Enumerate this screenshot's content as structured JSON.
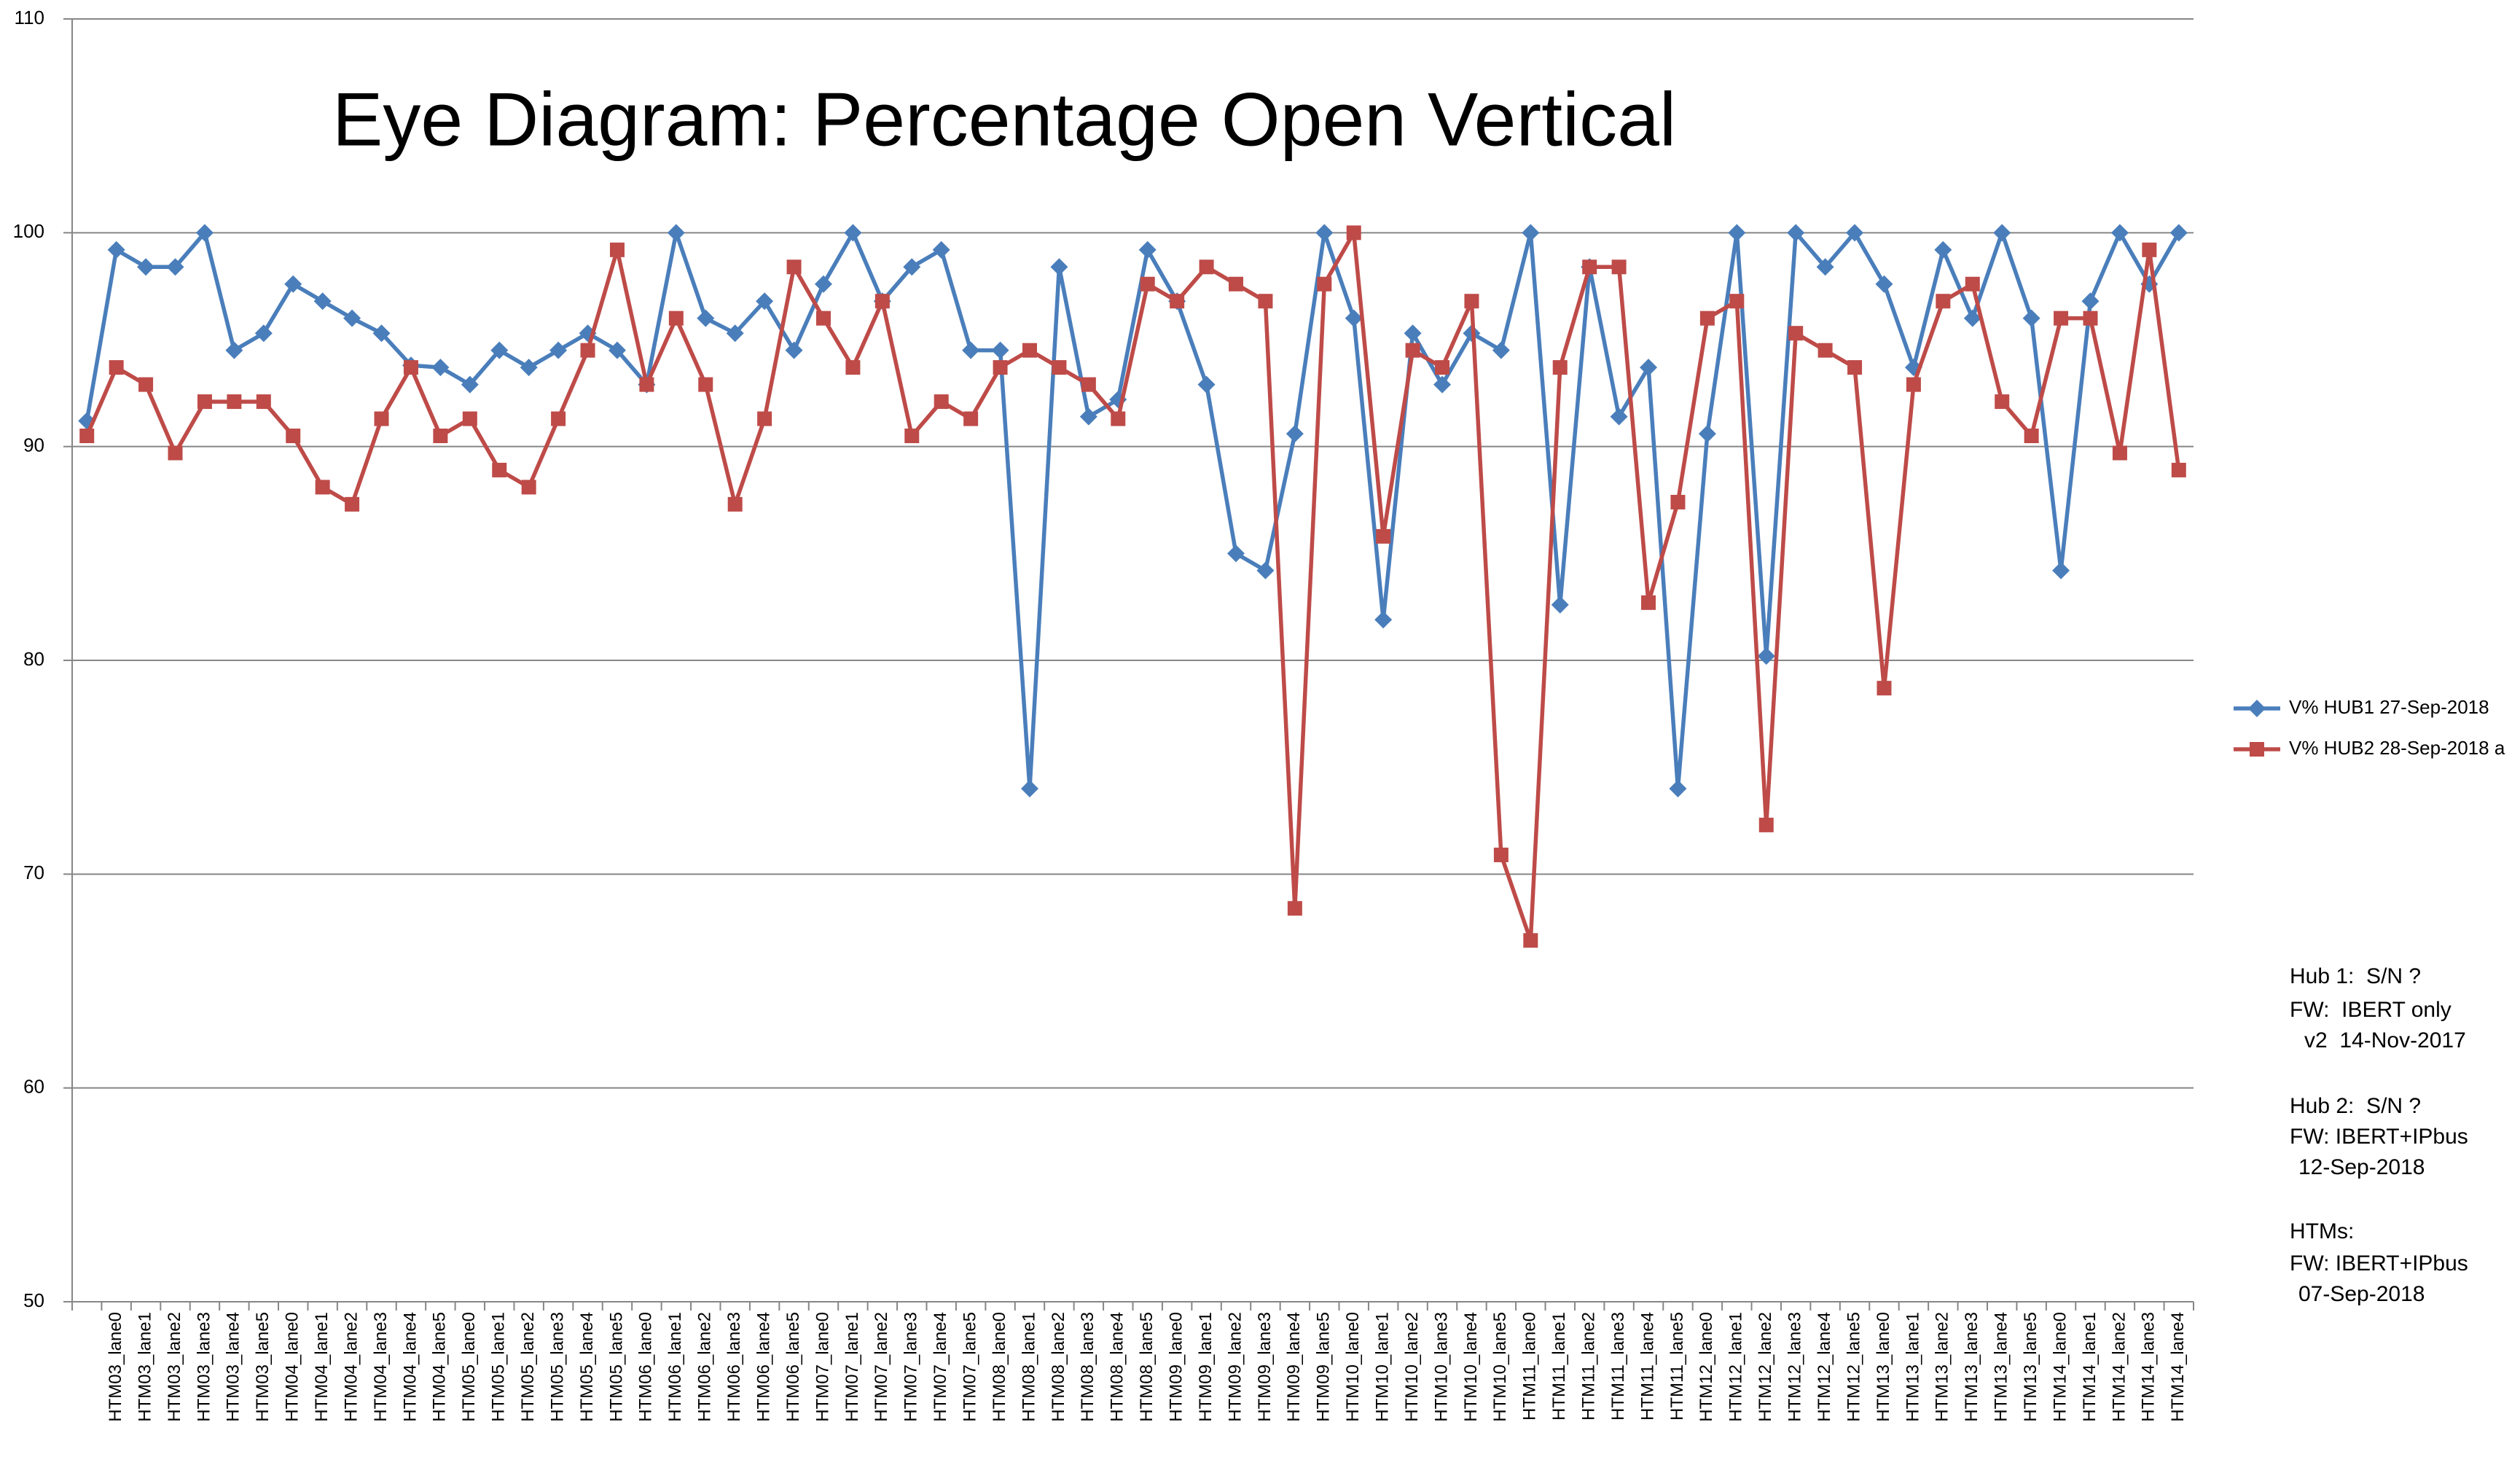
{
  "chart_data": {
    "type": "line",
    "title": "Eye Diagram: Percentage Open Vertical",
    "categories": [
      null,
      "HTM03_lane0",
      "HTM03_lane1",
      "HTM03_lane2",
      "HTM03_lane3",
      "HTM03_lane4",
      "HTM03_lane5",
      "HTM04_lane0",
      "HTM04_lane1",
      "HTM04_lane2",
      "HTM04_lane3",
      "HTM04_lane4",
      "HTM04_lane5",
      "HTM05_lane0",
      "HTM05_lane1",
      "HTM05_lane2",
      "HTM05_lane3",
      "HTM05_lane4",
      "HTM05_lane5",
      "HTM06_lane0",
      "HTM06_lane1",
      "HTM06_lane2",
      "HTM06_lane3",
      "HTM06_lane4",
      "HTM06_lane5",
      "HTM07_lane0",
      "HTM07_lane1",
      "HTM07_lane2",
      "HTM07_lane3",
      "HTM07_lane4",
      "HTM07_lane5",
      "HTM08_lane0",
      "HTM08_lane1",
      "HTM08_lane2",
      "HTM08_lane3",
      "HTM08_lane4",
      "HTM08_lane5",
      "HTM09_lane0",
      "HTM09_lane1",
      "HTM09_lane2",
      "HTM09_lane3",
      "HTM09_lane4",
      "HTM09_lane5",
      "HTM10_lane0",
      "HTM10_lane1",
      "HTM10_lane2",
      "HTM10_lane3",
      "HTM10_lane4",
      "HTM10_lane5",
      "HTM11_lane0",
      "HTM11_lane1",
      "HTM11_lane2",
      "HTM11_lane3",
      "HTM11_lane4",
      "HTM11_lane5",
      "HTM12_lane0",
      "HTM12_lane1",
      "HTM12_lane2",
      "HTM12_lane3",
      "HTM12_lane4",
      "HTM12_lane5",
      "HTM13_lane0",
      "HTM13_lane1",
      "HTM13_lane2",
      "HTM13_lane3",
      "HTM13_lane4",
      "HTM13_lane5",
      "HTM14_lane0",
      "HTM14_lane1",
      "HTM14_lane2",
      "HTM14_lane3",
      "HTM14_lane4"
    ],
    "series": [
      {
        "name": "V% HUB1 27-Sep-2018",
        "color": "#4a7ebb",
        "marker": "diamond",
        "values": [
          91.2,
          99.2,
          98.4,
          98.4,
          100,
          94.5,
          95.3,
          97.6,
          96.8,
          96.0,
          95.3,
          93.8,
          93.7,
          92.9,
          94.5,
          93.7,
          94.5,
          95.3,
          94.5,
          92.9,
          100,
          96.0,
          95.3,
          96.8,
          94.5,
          97.6,
          100,
          96.8,
          98.4,
          99.2,
          94.5,
          94.5,
          74.0,
          98.4,
          91.4,
          92.2,
          99.2,
          96.8,
          92.9,
          85.0,
          84.2,
          90.6,
          100,
          96.0,
          81.9,
          95.3,
          92.9,
          95.3,
          94.5,
          100,
          82.6,
          98.4,
          91.4,
          93.7,
          74.0,
          90.6,
          100,
          80.2,
          100,
          98.4,
          100,
          97.6,
          93.7,
          99.2,
          96.0,
          100,
          96.0,
          84.2,
          96.8,
          100,
          97.6,
          100
        ]
      },
      {
        "name": "V% HUB2 28-Sep-2018 a",
        "color": "#be4b48",
        "marker": "square",
        "values": [
          90.5,
          93.7,
          92.9,
          89.7,
          92.1,
          92.1,
          92.1,
          90.5,
          88.1,
          87.3,
          91.3,
          93.7,
          90.5,
          91.3,
          88.9,
          88.1,
          91.3,
          94.5,
          99.2,
          92.9,
          96.0,
          92.9,
          87.3,
          91.3,
          98.4,
          96.0,
          93.7,
          96.8,
          90.5,
          92.1,
          91.3,
          93.7,
          94.5,
          93.7,
          92.9,
          91.3,
          97.6,
          96.8,
          98.4,
          97.6,
          96.8,
          68.4,
          97.6,
          100,
          85.8,
          94.5,
          93.7,
          96.8,
          70.9,
          66.9,
          93.7,
          98.4,
          98.4,
          82.7,
          87.4,
          96.0,
          96.8,
          72.3,
          95.3,
          94.5,
          93.7,
          78.7,
          92.9,
          96.8,
          97.6,
          92.1,
          90.5,
          96.0,
          96.0,
          89.7,
          99.2,
          88.9
        ]
      }
    ],
    "ylim": [
      50,
      110
    ],
    "yticks": [
      50,
      60,
      70,
      80,
      90,
      100,
      110
    ],
    "grid": true,
    "legend": "right",
    "annotations": [
      "Hub 1:  S/N ?",
      "FW:  IBERT only",
      "v2  14-Nov-2017",
      "Hub 2:  S/N ?",
      "FW: IBERT+IPbus",
      "12-Sep-2018",
      "HTMs:",
      "FW: IBERT+IPbus",
      "07-Sep-2018"
    ]
  }
}
